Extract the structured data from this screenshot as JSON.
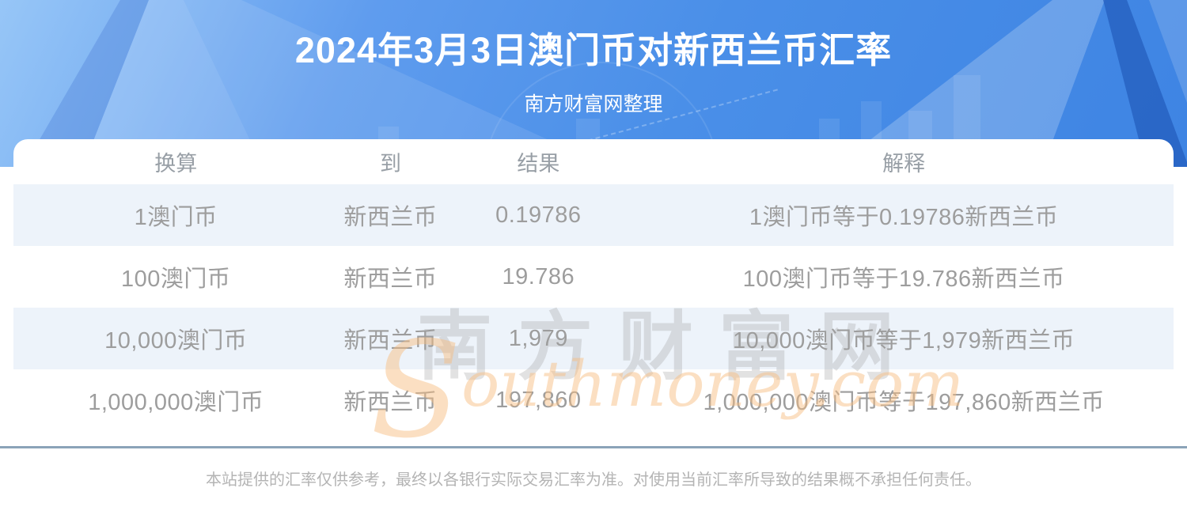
{
  "header": {
    "title": "2024年3月3日澳门币对新西兰币汇率",
    "subtitle": "南方财富网整理"
  },
  "table": {
    "headers": [
      "换算",
      "到",
      "结果",
      "解释"
    ],
    "rows": [
      [
        "1澳门币",
        "新西兰币",
        "0.19786",
        "1澳门币等于0.19786新西兰币"
      ],
      [
        "100澳门币",
        "新西兰币",
        "19.786",
        "100澳门币等于19.786新西兰币"
      ],
      [
        "10,000澳门币",
        "新西兰币",
        "1,979",
        "10,000澳门币等于1,979新西兰币"
      ],
      [
        "1,000,000澳门币",
        "新西兰币",
        "197,860",
        "1,000,000澳门币等于197,860新西兰币"
      ]
    ]
  },
  "watermark": {
    "cn": "南方财富网",
    "en_initial": "S",
    "en_rest": "outhmoney.com"
  },
  "footer": {
    "disclaimer": "本站提供的汇率仅供参考，最终以各银行实际交易汇率为准。对使用当前汇率所导致的结果概不承担任何责任。"
  },
  "colors": {
    "hero_blue": "#4a8fe8",
    "hero_light": "#97c6f7",
    "prism_dark": "#245dbe",
    "row_alt_bg": "#edf3fa",
    "divider": "#8ba3b8",
    "table_text_gray": "#9d9d9d",
    "watermark_orange": "#f6bd80",
    "title_white": "#ffffff"
  }
}
